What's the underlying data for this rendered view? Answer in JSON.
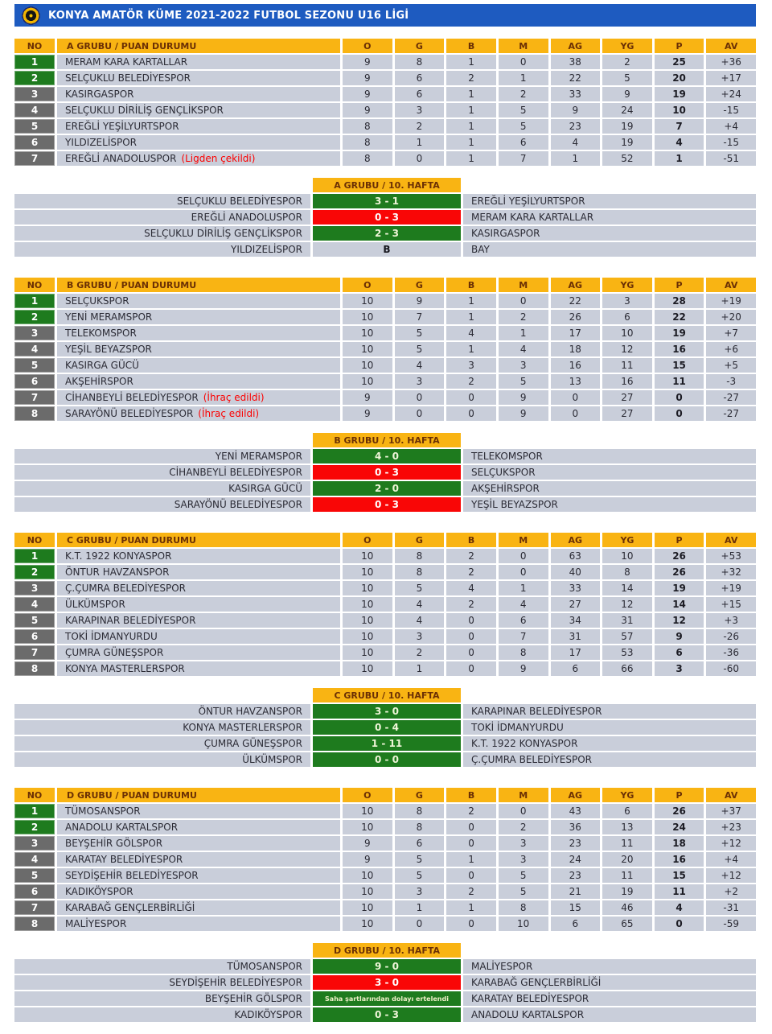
{
  "page": {
    "title": "KONYA AMATÖR KÜME 2021-2022 FUTBOL SEZONU U16 LİGİ",
    "logo_icon": "federation-badge-icon"
  },
  "colors": {
    "header_blue": "#1E5BC0",
    "table_orange": "#F9B413",
    "row_gray": "#C9CEDA",
    "rank_green": "#1E7B1E",
    "rank_gray": "#6B6B6B",
    "score_red": "#F90606",
    "note_red": "#FB0000"
  },
  "labels": {
    "no": "NO",
    "stats": [
      "O",
      "G",
      "B",
      "M",
      "AG",
      "YG",
      "P",
      "AV"
    ]
  },
  "groups": [
    {
      "header": "A GRUBU / PUAN DURUMU",
      "week_header": "A GRUBU / 10. HAFTA",
      "teams": [
        {
          "no": "1",
          "rank_color": "green",
          "name": "MERAM KARA KARTALLAR",
          "note": "",
          "stats": [
            "9",
            "8",
            "1",
            "0",
            "38",
            "2",
            "25",
            "+36"
          ]
        },
        {
          "no": "2",
          "rank_color": "green",
          "name": "SELÇUKLU BELEDİYESPOR",
          "note": "",
          "stats": [
            "9",
            "6",
            "2",
            "1",
            "22",
            "5",
            "20",
            "+17"
          ]
        },
        {
          "no": "3",
          "rank_color": "gray",
          "name": "KASIRGASPOR",
          "note": "",
          "stats": [
            "9",
            "6",
            "1",
            "2",
            "33",
            "9",
            "19",
            "+24"
          ]
        },
        {
          "no": "4",
          "rank_color": "gray",
          "name": "SELÇUKLU DİRİLİŞ GENÇLİKSPOR",
          "note": "",
          "stats": [
            "9",
            "3",
            "1",
            "5",
            "9",
            "24",
            "10",
            "-15"
          ]
        },
        {
          "no": "5",
          "rank_color": "gray",
          "name": "EREĞLİ YEŞİLYURTSPOR",
          "note": "",
          "stats": [
            "8",
            "2",
            "1",
            "5",
            "23",
            "19",
            "7",
            "+4"
          ]
        },
        {
          "no": "6",
          "rank_color": "gray",
          "name": "YILDIZELİSPOR",
          "note": "",
          "stats": [
            "8",
            "1",
            "1",
            "6",
            "4",
            "19",
            "4",
            "-15"
          ]
        },
        {
          "no": "7",
          "rank_color": "gray",
          "name": "EREĞLİ ANADOLUSPOR",
          "note": "(Ligden çekildi)",
          "stats": [
            "8",
            "0",
            "1",
            "7",
            "1",
            "52",
            "1",
            "-51"
          ]
        }
      ],
      "matches": [
        {
          "home": "SELÇUKLU BELEDİYESPOR",
          "score": "3 - 1",
          "away": "EREĞLİ YEŞİLYURTSPOR",
          "result": "win-green"
        },
        {
          "home": "EREĞLİ ANADOLUSPOR",
          "score": "0 - 3",
          "away": "MERAM KARA KARTALLAR",
          "result": "loss-red"
        },
        {
          "home": "SELÇUKLU DİRİLİŞ GENÇLİKSPOR",
          "score": "2 - 3",
          "away": "KASIRGASPOR",
          "result": "win-green"
        },
        {
          "home": "YILDIZELİSPOR",
          "score": "B",
          "away": "BAY",
          "result": "bye"
        }
      ]
    },
    {
      "header": "B GRUBU / PUAN DURUMU",
      "week_header": "B GRUBU / 10. HAFTA",
      "teams": [
        {
          "no": "1",
          "rank_color": "green",
          "name": "SELÇUKSPOR",
          "note": "",
          "stats": [
            "10",
            "9",
            "1",
            "0",
            "22",
            "3",
            "28",
            "+19"
          ]
        },
        {
          "no": "2",
          "rank_color": "green",
          "name": "YENİ MERAMSPOR",
          "note": "",
          "stats": [
            "10",
            "7",
            "1",
            "2",
            "26",
            "6",
            "22",
            "+20"
          ]
        },
        {
          "no": "3",
          "rank_color": "gray",
          "name": "TELEKOMSPOR",
          "note": "",
          "stats": [
            "10",
            "5",
            "4",
            "1",
            "17",
            "10",
            "19",
            "+7"
          ]
        },
        {
          "no": "4",
          "rank_color": "gray",
          "name": "YEŞİL BEYAZSPOR",
          "note": "",
          "stats": [
            "10",
            "5",
            "1",
            "4",
            "18",
            "12",
            "16",
            "+6"
          ]
        },
        {
          "no": "5",
          "rank_color": "gray",
          "name": "KASIRGA GÜCÜ",
          "note": "",
          "stats": [
            "10",
            "4",
            "3",
            "3",
            "16",
            "11",
            "15",
            "+5"
          ]
        },
        {
          "no": "6",
          "rank_color": "gray",
          "name": "AKŞEHİRSPOR",
          "note": "",
          "stats": [
            "10",
            "3",
            "2",
            "5",
            "13",
            "16",
            "11",
            "-3"
          ]
        },
        {
          "no": "7",
          "rank_color": "gray",
          "name": "CİHANBEYLİ BELEDİYESPOR",
          "note": "(İhraç edildi)",
          "stats": [
            "9",
            "0",
            "0",
            "9",
            "0",
            "27",
            "0",
            "-27"
          ]
        },
        {
          "no": "8",
          "rank_color": "gray",
          "name": "SARAYÖNÜ BELEDİYESPOR",
          "note": "(İhraç edildi)",
          "stats": [
            "9",
            "0",
            "0",
            "9",
            "0",
            "27",
            "0",
            "-27"
          ]
        }
      ],
      "matches": [
        {
          "home": "YENİ MERAMSPOR",
          "score": "4 - 0",
          "away": "TELEKOMSPOR",
          "result": "win-green"
        },
        {
          "home": "CİHANBEYLİ BELEDİYESPOR",
          "score": "0 - 3",
          "away": "SELÇUKSPOR",
          "result": "loss-red"
        },
        {
          "home": "KASIRGA GÜCÜ",
          "score": "2 - 0",
          "away": "AKŞEHİRSPOR",
          "result": "win-green"
        },
        {
          "home": "SARAYÖNÜ BELEDİYESPOR",
          "score": "0 - 3",
          "away": "YEŞİL BEYAZSPOR",
          "result": "loss-red"
        }
      ]
    },
    {
      "header": "C GRUBU / PUAN DURUMU",
      "week_header": "C GRUBU / 10. HAFTA",
      "teams": [
        {
          "no": "1",
          "rank_color": "green",
          "name": "K.T. 1922 KONYASPOR",
          "note": "",
          "stats": [
            "10",
            "8",
            "2",
            "0",
            "63",
            "10",
            "26",
            "+53"
          ]
        },
        {
          "no": "2",
          "rank_color": "green",
          "name": "ÖNTUR HAVZANSPOR",
          "note": "",
          "stats": [
            "10",
            "8",
            "2",
            "0",
            "40",
            "8",
            "26",
            "+32"
          ]
        },
        {
          "no": "3",
          "rank_color": "gray",
          "name": "Ç.ÇUMRA BELEDİYESPOR",
          "note": "",
          "stats": [
            "10",
            "5",
            "4",
            "1",
            "33",
            "14",
            "19",
            "+19"
          ]
        },
        {
          "no": "4",
          "rank_color": "gray",
          "name": "ÜLKÜMSPOR",
          "note": "",
          "stats": [
            "10",
            "4",
            "2",
            "4",
            "27",
            "12",
            "14",
            "+15"
          ]
        },
        {
          "no": "5",
          "rank_color": "gray",
          "name": "KARAPINAR BELEDİYESPOR",
          "note": "",
          "stats": [
            "10",
            "4",
            "0",
            "6",
            "34",
            "31",
            "12",
            "+3"
          ]
        },
        {
          "no": "6",
          "rank_color": "gray",
          "name": "TOKİ İDMANYURDU",
          "note": "",
          "stats": [
            "10",
            "3",
            "0",
            "7",
            "31",
            "57",
            "9",
            "-26"
          ]
        },
        {
          "no": "7",
          "rank_color": "gray",
          "name": "ÇUMRA GÜNEŞSPOR",
          "note": "",
          "stats": [
            "10",
            "2",
            "0",
            "8",
            "17",
            "53",
            "6",
            "-36"
          ]
        },
        {
          "no": "8",
          "rank_color": "gray",
          "name": "KONYA MASTERLERSPOR",
          "note": "",
          "stats": [
            "10",
            "1",
            "0",
            "9",
            "6",
            "66",
            "3",
            "-60"
          ]
        }
      ],
      "matches": [
        {
          "home": "ÖNTUR HAVZANSPOR",
          "score": "3 - 0",
          "away": "KARAPINAR BELEDİYESPOR",
          "result": "win-green"
        },
        {
          "home": "KONYA MASTERLERSPOR",
          "score": "0 - 4",
          "away": "TOKİ İDMANYURDU",
          "result": "win-green"
        },
        {
          "home": "ÇUMRA GÜNEŞSPOR",
          "score": "1 - 11",
          "away": "K.T. 1922 KONYASPOR",
          "result": "win-green"
        },
        {
          "home": "ÜLKÜMSPOR",
          "score": "0 - 0",
          "away": "Ç.ÇUMRA BELEDİYESPOR",
          "result": "win-green"
        }
      ]
    },
    {
      "header": "D GRUBU / PUAN DURUMU",
      "week_header": "D GRUBU / 10. HAFTA",
      "teams": [
        {
          "no": "1",
          "rank_color": "green",
          "name": "TÜMOSANSPOR",
          "note": "",
          "stats": [
            "10",
            "8",
            "2",
            "0",
            "43",
            "6",
            "26",
            "+37"
          ]
        },
        {
          "no": "2",
          "rank_color": "green",
          "name": "ANADOLU KARTALSPOR",
          "note": "",
          "stats": [
            "10",
            "8",
            "0",
            "2",
            "36",
            "13",
            "24",
            "+23"
          ]
        },
        {
          "no": "3",
          "rank_color": "gray",
          "name": "BEYŞEHİR GÖLSPOR",
          "note": "",
          "stats": [
            "9",
            "6",
            "0",
            "3",
            "23",
            "11",
            "18",
            "+12"
          ]
        },
        {
          "no": "4",
          "rank_color": "gray",
          "name": "KARATAY BELEDİYESPOR",
          "note": "",
          "stats": [
            "9",
            "5",
            "1",
            "3",
            "24",
            "20",
            "16",
            "+4"
          ]
        },
        {
          "no": "5",
          "rank_color": "gray",
          "name": "SEYDİŞEHİR BELEDİYESPOR",
          "note": "",
          "stats": [
            "10",
            "5",
            "0",
            "5",
            "23",
            "11",
            "15",
            "+12"
          ]
        },
        {
          "no": "6",
          "rank_color": "gray",
          "name": "KADIKÖYSPOR",
          "note": "",
          "stats": [
            "10",
            "3",
            "2",
            "5",
            "21",
            "19",
            "11",
            "+2"
          ]
        },
        {
          "no": "7",
          "rank_color": "gray",
          "name": "KARABAĞ GENÇLERBİRLİĞİ",
          "note": "",
          "stats": [
            "10",
            "1",
            "1",
            "8",
            "15",
            "46",
            "4",
            "-31"
          ]
        },
        {
          "no": "8",
          "rank_color": "gray",
          "name": "MALİYESPOR",
          "note": "",
          "stats": [
            "10",
            "0",
            "0",
            "10",
            "6",
            "65",
            "0",
            "-59"
          ]
        }
      ],
      "matches": [
        {
          "home": "TÜMOSANSPOR",
          "score": "9 - 0",
          "away": "MALİYESPOR",
          "result": "win-green"
        },
        {
          "home": "SEYDİŞEHİR BELEDİYESPOR",
          "score": "3 - 0",
          "away": "KARABAĞ GENÇLERBİRLİĞİ",
          "result": "loss-red"
        },
        {
          "home": "BEYŞEHİR GÖLSPOR",
          "score": "Saha şartlarından dolayı ertelendi",
          "away": "KARATAY BELEDİYESPOR",
          "result": "postponed"
        },
        {
          "home": "KADIKÖYSPOR",
          "score": "0 - 3",
          "away": "ANADOLU KARTALSPOR",
          "result": "win-green"
        }
      ]
    }
  ]
}
